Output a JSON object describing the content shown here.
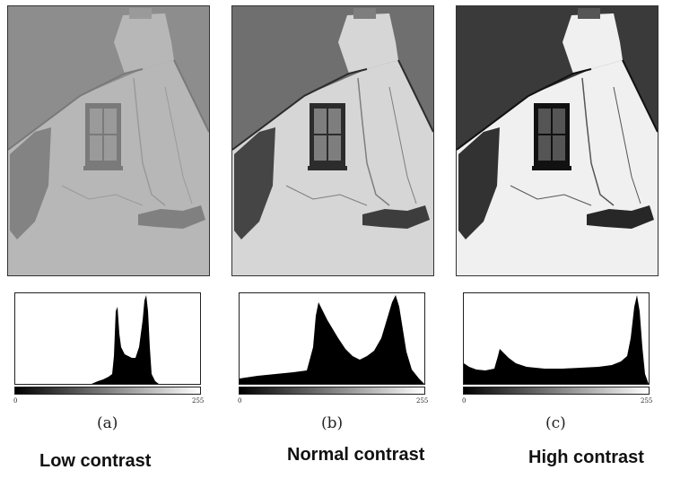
{
  "panels": [
    {
      "id": "a",
      "sub_label": "(a)",
      "caption": "Low contrast",
      "hist_min_label": "0",
      "hist_max_label": "255",
      "tone": {
        "sky": "#8d8d8d",
        "wall": "#b7b7b7",
        "dark": "#7a7a7a",
        "crack": "#9a9a9a"
      }
    },
    {
      "id": "b",
      "sub_label": "(b)",
      "caption": "Normal contrast",
      "hist_min_label": "0",
      "hist_max_label": "255",
      "tone": {
        "sky": "#6f6f6f",
        "wall": "#d6d6d6",
        "dark": "#2c2c2c",
        "crack": "#7e7e7e"
      }
    },
    {
      "id": "c",
      "sub_label": "(c)",
      "caption": "High contrast",
      "hist_min_label": "0",
      "hist_max_label": "255",
      "tone": {
        "sky": "#3a3a3a",
        "wall": "#f0f0f0",
        "dark": "#111111",
        "crack": "#555555"
      }
    }
  ]
}
